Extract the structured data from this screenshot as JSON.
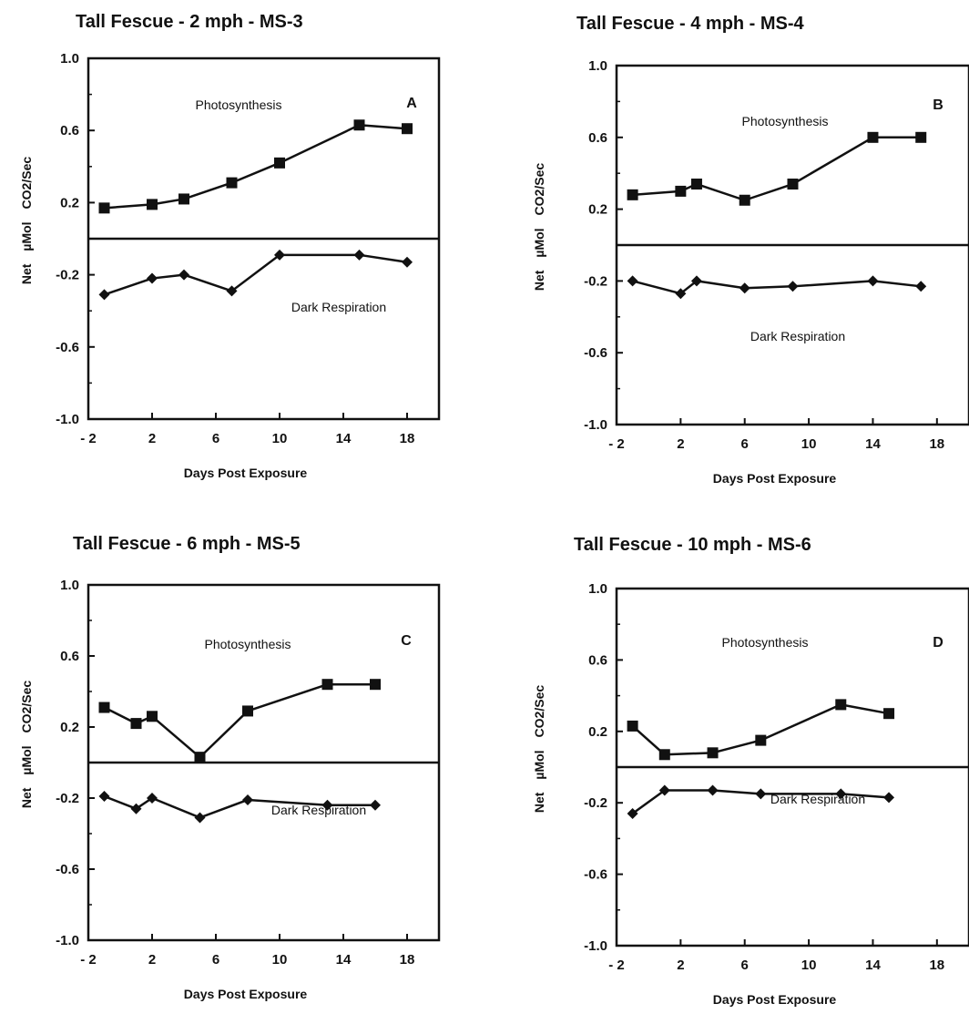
{
  "chart_data": [
    {
      "type": "line",
      "title": "Tall Fescue - 2 mph - MS-3",
      "panel_letter": "A",
      "xlabel": "Days Post Exposure",
      "ylabel_parts": [
        "Net",
        "µMol",
        "CO2/Sec"
      ],
      "xlim": [
        -2,
        20
      ],
      "ylim": [
        -1.0,
        1.0
      ],
      "xticks": [
        -2,
        2,
        6,
        10,
        14,
        18
      ],
      "xtick_labels": [
        "- 2",
        "2",
        "6",
        "10",
        "14",
        "18"
      ],
      "yticks": [
        1.0,
        0.6,
        0.2,
        -0.2,
        -0.6,
        -1.0
      ],
      "ytick_labels": [
        "1.0",
        "0.6",
        "0.2",
        "-0.2",
        "-0.6",
        "-1.0"
      ],
      "zero_line": true,
      "series": [
        {
          "name": "Photosynthesis",
          "marker": "square",
          "x": [
            -1,
            2,
            4,
            7,
            10,
            15,
            18
          ],
          "y": [
            0.17,
            0.19,
            0.22,
            0.31,
            0.42,
            0.63,
            0.61
          ]
        },
        {
          "name": "Dark Respiration",
          "marker": "diamond",
          "x": [
            -1,
            2,
            4,
            7,
            10,
            15,
            18
          ],
          "y": [
            -0.31,
            -0.22,
            -0.2,
            -0.29,
            -0.09,
            -0.09,
            -0.13
          ]
        }
      ]
    },
    {
      "type": "line",
      "title": "Tall Fescue - 4 mph - MS-4",
      "panel_letter": "B",
      "xlabel": "Days Post Exposure",
      "ylabel_parts": [
        "Net",
        "µMol",
        "CO2/Sec"
      ],
      "xlim": [
        -2,
        20
      ],
      "ylim": [
        -1.0,
        1.0
      ],
      "xticks": [
        -2,
        2,
        6,
        10,
        14,
        18
      ],
      "xtick_labels": [
        "- 2",
        "2",
        "6",
        "10",
        "14",
        "18"
      ],
      "yticks": [
        1.0,
        0.6,
        0.2,
        -0.2,
        -0.6,
        -1.0
      ],
      "ytick_labels": [
        "1.0",
        "0.6",
        "0.2",
        "-0.2",
        "-0.6",
        "-1.0"
      ],
      "zero_line": true,
      "series": [
        {
          "name": "Photosynthesis",
          "marker": "square",
          "x": [
            -1,
            2,
            3,
            6,
            9,
            14,
            17
          ],
          "y": [
            0.28,
            0.3,
            0.34,
            0.25,
            0.34,
            0.6,
            0.6
          ]
        },
        {
          "name": "Dark Respiration",
          "marker": "diamond",
          "x": [
            -1,
            2,
            3,
            6,
            9,
            14,
            17
          ],
          "y": [
            -0.2,
            -0.27,
            -0.2,
            -0.24,
            -0.23,
            -0.2,
            -0.23
          ]
        }
      ]
    },
    {
      "type": "line",
      "title": "Tall Fescue - 6 mph - MS-5",
      "panel_letter": "C",
      "xlabel": "Days Post Exposure",
      "ylabel_parts": [
        "Net",
        "µMol",
        "CO2/Sec"
      ],
      "xlim": [
        -2,
        20
      ],
      "ylim": [
        -1.0,
        1.0
      ],
      "xticks": [
        -2,
        2,
        6,
        10,
        14,
        18
      ],
      "xtick_labels": [
        "- 2",
        "2",
        "6",
        "10",
        "14",
        "18"
      ],
      "yticks": [
        1.0,
        0.6,
        0.2,
        -0.2,
        -0.6,
        -1.0
      ],
      "ytick_labels": [
        "1.0",
        "0.6",
        "0.2",
        "-0.2",
        "-0.6",
        "-1.0"
      ],
      "zero_line": true,
      "series": [
        {
          "name": "Photosynthesis",
          "marker": "square",
          "x": [
            -1,
            1,
            2,
            5,
            8,
            13,
            16
          ],
          "y": [
            0.31,
            0.22,
            0.26,
            0.03,
            0.29,
            0.44,
            0.44
          ]
        },
        {
          "name": "Dark Respiration",
          "marker": "diamond",
          "x": [
            -1,
            1,
            2,
            5,
            8,
            13,
            16
          ],
          "y": [
            -0.19,
            -0.26,
            -0.2,
            -0.31,
            -0.21,
            -0.24,
            -0.24
          ]
        }
      ]
    },
    {
      "type": "line",
      "title": "Tall Fescue - 10 mph - MS-6",
      "panel_letter": "D",
      "xlabel": "Days Post Exposure",
      "ylabel_parts": [
        "Net",
        "µMol",
        "CO2/Sec"
      ],
      "xlim": [
        -2,
        20
      ],
      "ylim": [
        -1.0,
        1.0
      ],
      "xticks": [
        -2,
        2,
        6,
        10,
        14,
        18
      ],
      "xtick_labels": [
        "- 2",
        "2",
        "6",
        "10",
        "14",
        "18"
      ],
      "yticks": [
        1.0,
        0.6,
        0.2,
        -0.2,
        -0.6,
        -1.0
      ],
      "ytick_labels": [
        "1.0",
        "0.6",
        "0.2",
        "-0.2",
        "-0.6",
        "-1.0"
      ],
      "zero_line": true,
      "series": [
        {
          "name": "Photosynthesis",
          "marker": "square",
          "x": [
            -1,
            1,
            4,
            7,
            12,
            15
          ],
          "y": [
            0.23,
            0.07,
            0.08,
            0.15,
            0.35,
            0.3
          ]
        },
        {
          "name": "Dark Respiration",
          "marker": "diamond",
          "x": [
            -1,
            1,
            4,
            7,
            12,
            15
          ],
          "y": [
            -0.26,
            -0.13,
            -0.13,
            -0.15,
            -0.15,
            -0.17
          ]
        }
      ]
    }
  ]
}
